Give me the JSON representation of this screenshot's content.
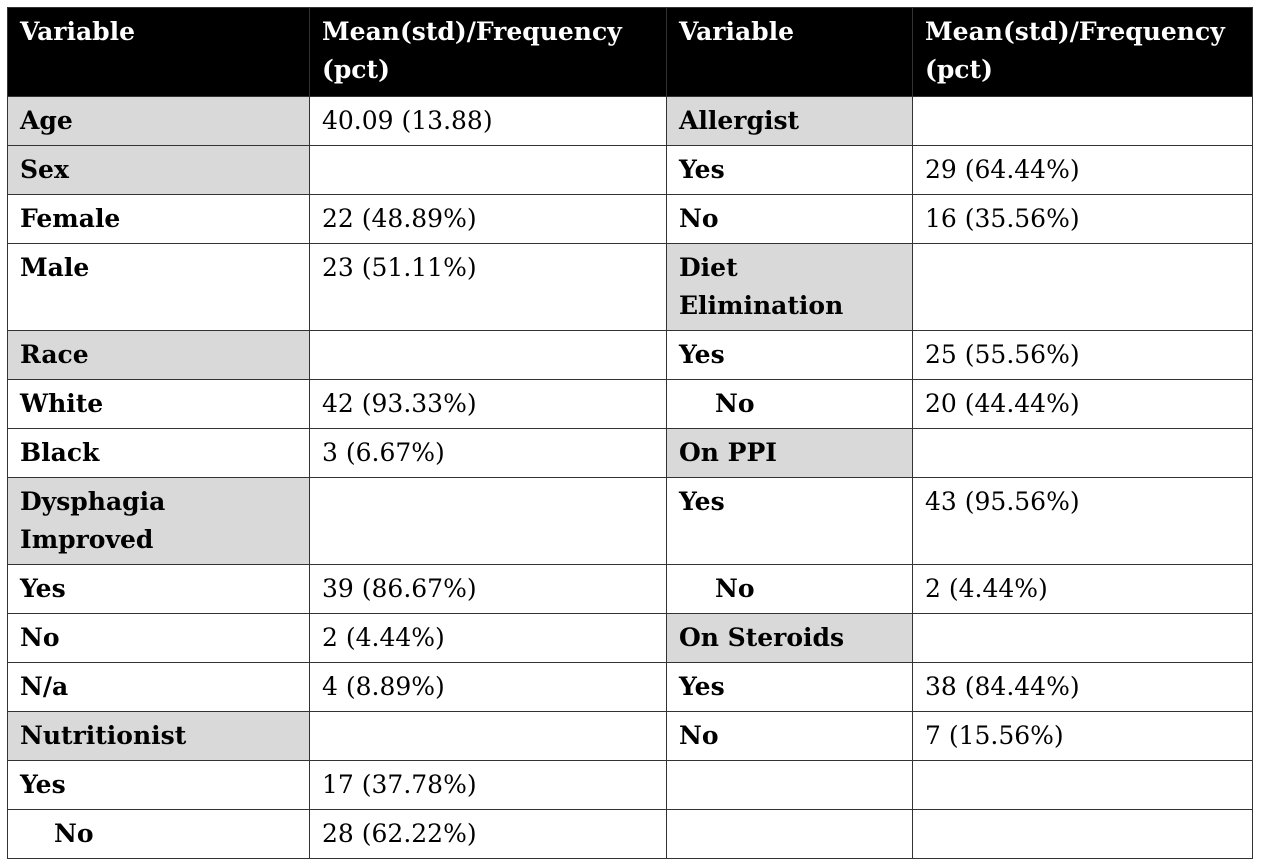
{
  "headers": [
    "Variable",
    "Mean(std)/Frequency (pct)",
    "Variable",
    "Mean(std)/Frequency (pct)"
  ],
  "rows": [
    {
      "l_var": "Age",
      "l_val": "40.09 (13.88)",
      "r_var": "Allergist",
      "r_val": ""
    },
    {
      "l_var": "Sex",
      "l_val": "",
      "r_var": "Yes",
      "r_val": "29 (64.44%)"
    },
    {
      "l_var": "Female",
      "l_val": "22 (48.89%)",
      "r_var": "No",
      "r_val": "16 (35.56%)"
    },
    {
      "l_var": "Male",
      "l_val": "23 (51.11%)",
      "r_var": "Diet Elimination",
      "r_val": ""
    },
    {
      "l_var": "Race",
      "l_val": "",
      "r_var": "Yes",
      "r_val": "25 (55.56%)"
    },
    {
      "l_var": "White",
      "l_val": "42 (93.33%)",
      "r_var": "No",
      "r_val": "20 (44.44%)"
    },
    {
      "l_var": "Black",
      "l_val": "3 (6.67%)",
      "r_var": "On PPI",
      "r_val": ""
    },
    {
      "l_var": "Dysphagia Improved",
      "l_val": "",
      "r_var": "Yes",
      "r_val": "43 (95.56%)"
    },
    {
      "l_var": "Yes",
      "l_val": "39 (86.67%)",
      "r_var": "No",
      "r_val": "2 (4.44%)"
    },
    {
      "l_var": "No",
      "l_val": "2 (4.44%)",
      "r_var": "On Steroids",
      "r_val": ""
    },
    {
      "l_var": "N/a",
      "l_val": "4 (8.89%)",
      "r_var": "Yes",
      "r_val": "38 (84.44%)"
    },
    {
      "l_var": "Nutritionist",
      "l_val": "",
      "r_var": "No",
      "r_val": "7 (15.56%)"
    },
    {
      "l_var": "Yes",
      "l_val": "17 (37.78%)",
      "r_var": "",
      "r_val": ""
    },
    {
      "l_var": "No",
      "l_val": "28 (62.22%)",
      "r_var": "",
      "r_val": ""
    }
  ]
}
